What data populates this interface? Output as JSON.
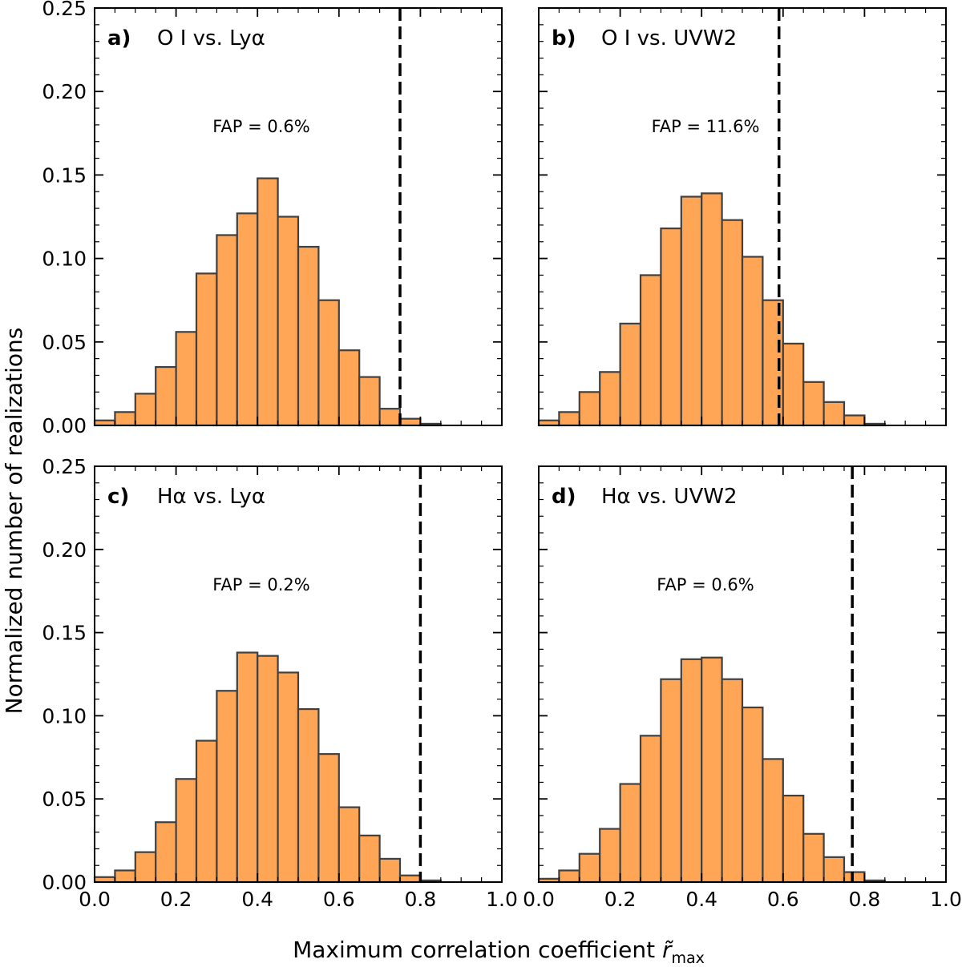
{
  "chart_data": [
    {
      "type": "bar",
      "panel": "a)",
      "title": "O I vs. Lyα",
      "annotation": "FAP = 0.6%",
      "bin_edges": [
        0.0,
        0.05,
        0.1,
        0.15,
        0.2,
        0.25,
        0.3,
        0.35,
        0.4,
        0.45,
        0.5,
        0.55,
        0.6,
        0.65,
        0.7,
        0.75,
        0.8,
        0.85,
        0.9,
        0.95,
        1.0
      ],
      "values": [
        0.003,
        0.008,
        0.019,
        0.035,
        0.056,
        0.091,
        0.114,
        0.127,
        0.148,
        0.125,
        0.107,
        0.075,
        0.045,
        0.029,
        0.01,
        0.004,
        0.001,
        0,
        0,
        0
      ],
      "observed_value": 0.75,
      "xlim": [
        0,
        1
      ],
      "ylim": [
        0,
        0.25
      ],
      "color": "#ffa556",
      "edge_color": "#404040"
    },
    {
      "type": "bar",
      "panel": "b)",
      "title": "O I vs. UVW2",
      "annotation": "FAP = 11.6%",
      "bin_edges": [
        0.0,
        0.05,
        0.1,
        0.15,
        0.2,
        0.25,
        0.3,
        0.35,
        0.4,
        0.45,
        0.5,
        0.55,
        0.6,
        0.65,
        0.7,
        0.75,
        0.8,
        0.85,
        0.9,
        0.95,
        1.0
      ],
      "values": [
        0.003,
        0.008,
        0.02,
        0.032,
        0.061,
        0.09,
        0.118,
        0.137,
        0.139,
        0.123,
        0.101,
        0.075,
        0.049,
        0.026,
        0.014,
        0.006,
        0.001,
        0,
        0,
        0
      ],
      "observed_value": 0.59,
      "xlim": [
        0,
        1
      ],
      "ylim": [
        0,
        0.25
      ],
      "color": "#ffa556",
      "edge_color": "#404040"
    },
    {
      "type": "bar",
      "panel": "c)",
      "title": "Hα vs. Lyα",
      "annotation": "FAP = 0.2%",
      "bin_edges": [
        0.0,
        0.05,
        0.1,
        0.15,
        0.2,
        0.25,
        0.3,
        0.35,
        0.4,
        0.45,
        0.5,
        0.55,
        0.6,
        0.65,
        0.7,
        0.75,
        0.8,
        0.85,
        0.9,
        0.95,
        1.0
      ],
      "values": [
        0.003,
        0.007,
        0.018,
        0.036,
        0.062,
        0.085,
        0.115,
        0.138,
        0.136,
        0.126,
        0.104,
        0.077,
        0.045,
        0.028,
        0.014,
        0.004,
        0.001,
        0,
        0,
        0
      ],
      "observed_value": 0.8,
      "xlim": [
        0,
        1
      ],
      "ylim": [
        0,
        0.25
      ],
      "color": "#ffa556",
      "edge_color": "#404040"
    },
    {
      "type": "bar",
      "panel": "d)",
      "title": "Hα vs. UVW2",
      "annotation": "FAP = 0.6%",
      "bin_edges": [
        0.0,
        0.05,
        0.1,
        0.15,
        0.2,
        0.25,
        0.3,
        0.35,
        0.4,
        0.45,
        0.5,
        0.55,
        0.6,
        0.65,
        0.7,
        0.75,
        0.8,
        0.85,
        0.9,
        0.95,
        1.0
      ],
      "values": [
        0.002,
        0.007,
        0.017,
        0.032,
        0.059,
        0.088,
        0.122,
        0.134,
        0.135,
        0.122,
        0.105,
        0.074,
        0.052,
        0.029,
        0.015,
        0.006,
        0.001,
        0,
        0,
        0
      ],
      "observed_value": 0.77,
      "xlim": [
        0,
        1
      ],
      "ylim": [
        0,
        0.25
      ],
      "color": "#ffa556",
      "edge_color": "#404040"
    }
  ],
  "axes": {
    "xlabel": "Maximum correlation coefficient",
    "xlabel_symbol": "r̃",
    "xlabel_subscript": "max",
    "ylabel": "Normalized number of realizations",
    "x_ticks": [
      "0.0",
      "0.2",
      "0.4",
      "0.6",
      "0.8",
      "1.0"
    ],
    "y_ticks": [
      "0.00",
      "0.05",
      "0.10",
      "0.15",
      "0.20",
      "0.25"
    ],
    "x_tick_values": [
      0,
      0.2,
      0.4,
      0.6,
      0.8,
      1.0
    ],
    "y_tick_values": [
      0,
      0.05,
      0.1,
      0.15,
      0.2,
      0.25
    ]
  }
}
